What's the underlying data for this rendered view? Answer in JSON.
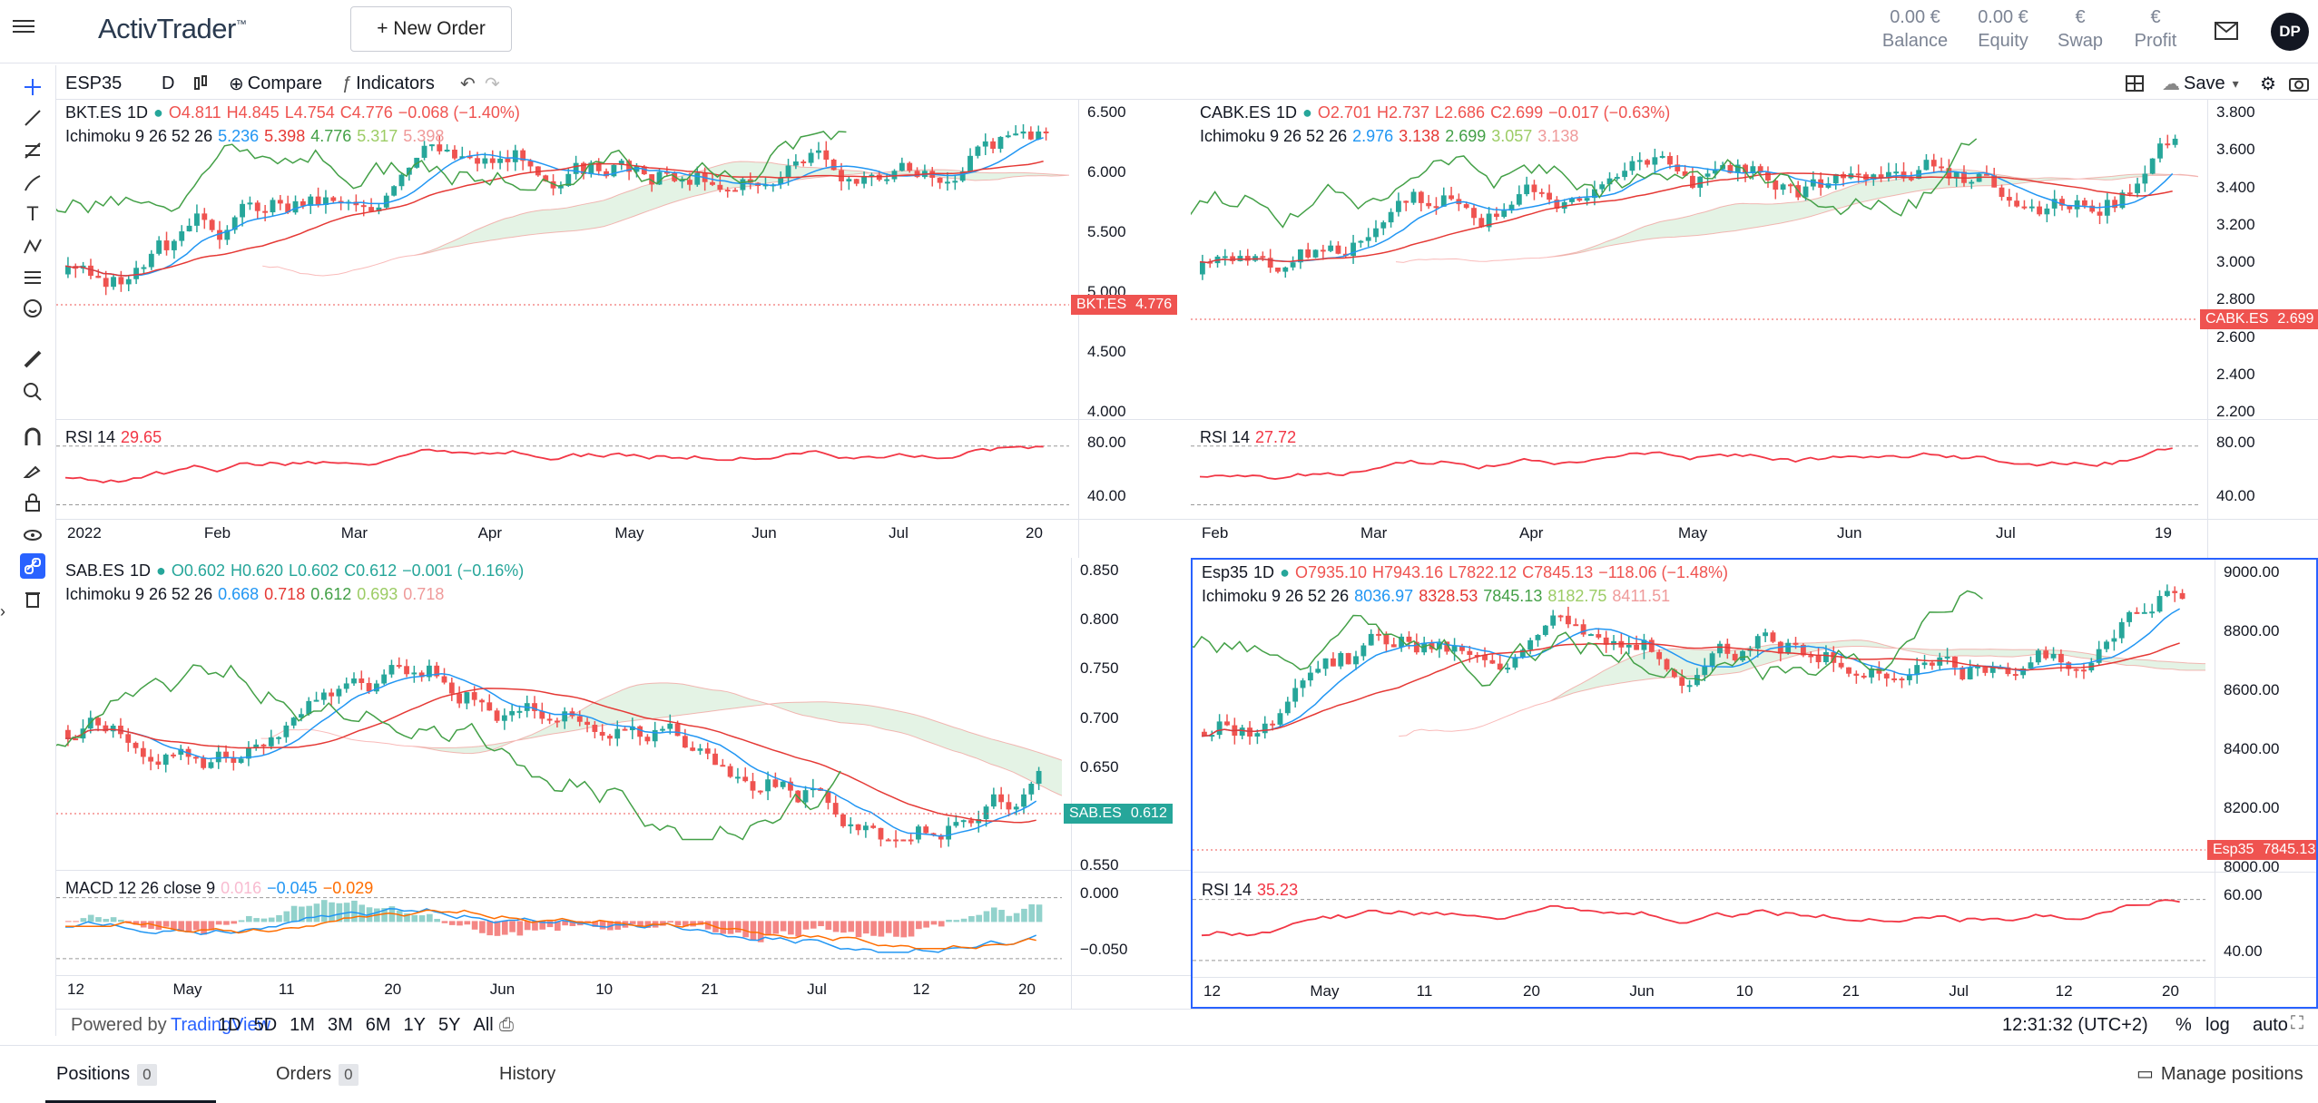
{
  "app": {
    "name": "ActivTrader",
    "trademark": "™",
    "new_order": "+ New Order",
    "user_initials": "DP"
  },
  "account": [
    {
      "value": "0.00 €",
      "label": "Balance"
    },
    {
      "value": "0.00 €",
      "label": "Equity"
    },
    {
      "value": "€",
      "label": "Swap"
    },
    {
      "value": "€",
      "label": "Profit"
    }
  ],
  "toolbar": {
    "symbol": "ESP35",
    "interval": "D",
    "compare": "Compare",
    "indicators": "Indicators",
    "save": "Save"
  },
  "bottom": {
    "powered": "Powered by",
    "tv": "TradingView",
    "ranges": [
      "1D",
      "5D",
      "1M",
      "3M",
      "6M",
      "1Y",
      "5Y",
      "All"
    ],
    "time": "12:31:32 (UTC+2)",
    "percent": "%",
    "log": "log",
    "auto": "auto"
  },
  "tabs": {
    "positions": "Positions",
    "positions_count": "0",
    "orders": "Orders",
    "orders_count": "0",
    "history": "History",
    "manage": "Manage positions"
  },
  "colors": {
    "up": "#26a69a",
    "down": "#ef5350",
    "tenkan": "#2196f3",
    "kijun": "#e53935",
    "chikou": "#43a047",
    "rsi": "#f23645"
  },
  "charts": [
    {
      "symbol": "BKT.ES",
      "tf": "1D",
      "ohlc": {
        "o": "O4.811",
        "h": "H4.845",
        "l": "L4.754",
        "c": "C4.776",
        "chg": "−0.068 (−1.40%)"
      },
      "ichimoku": {
        "label": "Ichimoku 9 26 52 26",
        "v": [
          "5.236",
          "5.398",
          "4.776",
          "5.317",
          "5.398"
        ]
      },
      "price_axis": [
        "6.500",
        "6.000",
        "5.500",
        "5.000",
        "4.500",
        "4.000"
      ],
      "last": "4.776",
      "sub": {
        "label": "RSI 14",
        "value": "29.65",
        "axis": [
          "80.00",
          "40.00"
        ]
      },
      "time_axis": [
        "2022",
        "Feb",
        "Mar",
        "Apr",
        "May",
        "Jun",
        "Jul",
        "20"
      ]
    },
    {
      "symbol": "CABK.ES",
      "tf": "1D",
      "ohlc": {
        "o": "O2.701",
        "h": "H2.737",
        "l": "L2.686",
        "c": "C2.699",
        "chg": "−0.017 (−0.63%)"
      },
      "ichimoku": {
        "label": "Ichimoku 9 26 52 26",
        "v": [
          "2.976",
          "3.138",
          "2.699",
          "3.057",
          "3.138"
        ]
      },
      "price_axis": [
        "3.800",
        "3.600",
        "3.400",
        "3.200",
        "3.000",
        "2.800",
        "2.600",
        "2.400",
        "2.200"
      ],
      "last": "2.699",
      "sub": {
        "label": "RSI 14",
        "value": "27.72",
        "axis": [
          "80.00",
          "40.00"
        ]
      },
      "time_axis": [
        "Feb",
        "Mar",
        "Apr",
        "May",
        "Jun",
        "Jul",
        "19"
      ]
    },
    {
      "symbol": "SAB.ES",
      "tf": "1D",
      "ohlc": {
        "o": "O0.602",
        "h": "H0.620",
        "l": "L0.602",
        "c": "C0.612",
        "chg": "−0.001 (−0.16%)"
      },
      "ichimoku": {
        "label": "Ichimoku 9 26 52 26",
        "v": [
          "0.668",
          "0.718",
          "0.612",
          "0.693",
          "0.718"
        ]
      },
      "price_axis": [
        "0.850",
        "0.800",
        "0.750",
        "0.700",
        "0.650",
        "0.600",
        "0.550"
      ],
      "last": "0.612",
      "sub": {
        "label": "MACD 12 26 close 9",
        "values": [
          "0.016",
          "−0.045",
          "−0.029"
        ],
        "axis": [
          "0.000",
          "−0.050"
        ]
      },
      "time_axis": [
        "12",
        "May",
        "11",
        "20",
        "Jun",
        "10",
        "21",
        "Jul",
        "12",
        "20"
      ]
    },
    {
      "symbol": "Esp35",
      "tf": "1D",
      "ohlc": {
        "o": "O7935.10",
        "h": "H7943.16",
        "l": "L7822.12",
        "c": "C7845.13",
        "chg": "−118.06 (−1.48%)"
      },
      "ichimoku": {
        "label": "Ichimoku 9 26 52 26",
        "v": [
          "8036.97",
          "8328.53",
          "7845.13",
          "8182.75",
          "8411.51"
        ]
      },
      "price_axis": [
        "9000.00",
        "8800.00",
        "8600.00",
        "8400.00",
        "8200.00",
        "8000.00"
      ],
      "last": "7845.13",
      "sub": {
        "label": "RSI 14",
        "value": "35.23",
        "axis": [
          "60.00",
          "40.00"
        ]
      },
      "time_axis": [
        "12",
        "May",
        "11",
        "20",
        "Jun",
        "10",
        "21",
        "Jul",
        "12",
        "20"
      ]
    }
  ]
}
